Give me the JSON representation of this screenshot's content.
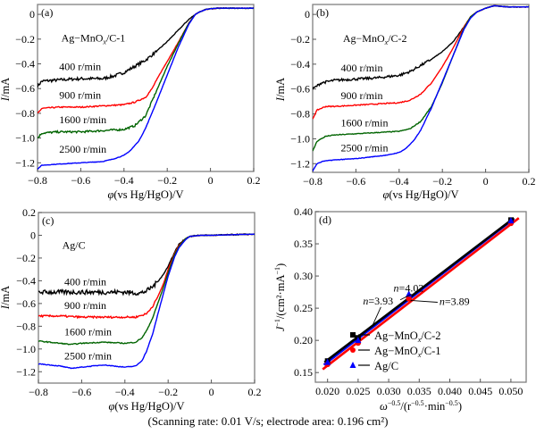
{
  "caption": "(Scanning rate: 0.01 V/s; electrode area: 0.196 cm²)",
  "colors": {
    "400": "#000000",
    "900": "#ff0000",
    "1600": "#006400",
    "2500": "#0000ff",
    "agmnox2": "#000000",
    "agmnox1": "#ff0000",
    "agc": "#0000ff",
    "axis": "#808080"
  },
  "chart_data": [
    {
      "type": "line",
      "panel": "(a)",
      "title": "Ag−MnOx/C-1",
      "xlabel": "φ(vs Hg/HgO)/V",
      "ylabel": "I/mA",
      "xlim": [
        -0.8,
        0.2
      ],
      "ylim": [
        -1.27,
        0.08
      ],
      "xticks": [
        -0.8,
        -0.6,
        -0.4,
        -0.2,
        0,
        0.2
      ],
      "xtick_labels": [
        "−0.8",
        "−0.6",
        "−0.4",
        "−0.2",
        "0",
        "0.2"
      ],
      "yticks": [
        0,
        -0.2,
        -0.4,
        -0.6,
        -0.8,
        -1.0,
        -1.2
      ],
      "ytick_labels": [
        "0",
        "−0.2",
        "−0.4",
        "−0.6",
        "−0.8",
        "−1.0",
        "−1.2"
      ],
      "series": [
        {
          "name": "400 r/min",
          "color_key": "400",
          "noise": 0.012,
          "x": [
            -0.8,
            -0.78,
            -0.7,
            -0.6,
            -0.5,
            -0.45,
            -0.4,
            -0.35,
            -0.3,
            -0.25,
            -0.2,
            -0.15,
            -0.1,
            -0.07,
            -0.05,
            -0.02,
            0.0,
            0.03,
            0.1,
            0.2
          ],
          "y": [
            -0.58,
            -0.54,
            -0.53,
            -0.52,
            -0.52,
            -0.5,
            -0.47,
            -0.42,
            -0.37,
            -0.3,
            -0.22,
            -0.13,
            -0.04,
            0.0,
            0.02,
            0.04,
            0.045,
            0.05,
            0.05,
            0.05
          ]
        },
        {
          "name": "900 r/min",
          "color_key": "900",
          "noise": 0.005,
          "x": [
            -0.8,
            -0.78,
            -0.7,
            -0.6,
            -0.5,
            -0.4,
            -0.35,
            -0.3,
            -0.27,
            -0.24,
            -0.2,
            -0.15,
            -0.1,
            -0.07,
            -0.05,
            -0.02,
            0.0,
            0.03,
            0.1,
            0.2
          ],
          "y": [
            -0.8,
            -0.76,
            -0.75,
            -0.75,
            -0.74,
            -0.73,
            -0.71,
            -0.67,
            -0.6,
            -0.5,
            -0.38,
            -0.23,
            -0.07,
            0.0,
            0.02,
            0.04,
            0.045,
            0.05,
            0.05,
            0.05
          ]
        },
        {
          "name": "1600 r/min",
          "color_key": "1600",
          "noise": 0.008,
          "x": [
            -0.8,
            -0.78,
            -0.7,
            -0.6,
            -0.5,
            -0.4,
            -0.35,
            -0.3,
            -0.25,
            -0.2,
            -0.15,
            -0.1,
            -0.07,
            -0.05,
            -0.02,
            0.0,
            0.03,
            0.1,
            0.2
          ],
          "y": [
            -1.0,
            -0.96,
            -0.95,
            -0.95,
            -0.94,
            -0.93,
            -0.9,
            -0.82,
            -0.62,
            -0.42,
            -0.24,
            -0.07,
            0.0,
            0.02,
            0.04,
            0.045,
            0.05,
            0.05,
            0.05
          ]
        },
        {
          "name": "2500 r/min",
          "color_key": "2500",
          "noise": 0.002,
          "x": [
            -0.8,
            -0.78,
            -0.7,
            -0.6,
            -0.5,
            -0.45,
            -0.4,
            -0.37,
            -0.33,
            -0.3,
            -0.25,
            -0.2,
            -0.15,
            -0.1,
            -0.07,
            -0.05,
            -0.02,
            0.0,
            0.03,
            0.1,
            0.2
          ],
          "y": [
            -1.25,
            -1.22,
            -1.21,
            -1.2,
            -1.19,
            -1.17,
            -1.14,
            -1.1,
            -1.02,
            -0.92,
            -0.71,
            -0.49,
            -0.27,
            -0.08,
            0.0,
            0.02,
            0.04,
            0.045,
            0.05,
            0.05,
            0.05
          ]
        }
      ],
      "labels": [
        {
          "text": "400 r/min",
          "x": -0.7,
          "y": -0.45
        },
        {
          "text": "900 r/min",
          "x": -0.7,
          "y": -0.68
        },
        {
          "text": "1600 r/min",
          "x": -0.7,
          "y": -0.88
        },
        {
          "text": "2500 r/min",
          "x": -0.7,
          "y": -1.12
        }
      ],
      "title_pos": {
        "x": -0.69,
        "y": -0.22
      }
    },
    {
      "type": "line",
      "panel": "(b)",
      "title": "Ag−MnOx/C-2",
      "xlabel": "φ(vs Hg/HgO)/V",
      "ylabel": "I/mA",
      "xlim": [
        -0.8,
        0.2
      ],
      "ylim": [
        -1.27,
        0.08
      ],
      "xticks": [
        -0.8,
        -0.6,
        -0.4,
        -0.2,
        0,
        0.2
      ],
      "xtick_labels": [
        "−0.8",
        "−0.6",
        "−0.4",
        "−0.2",
        "0",
        "0.2"
      ],
      "yticks": [
        0,
        -0.2,
        -0.4,
        -0.6,
        -0.8,
        -1.0,
        -1.2
      ],
      "ytick_labels": [
        "0",
        "−0.2",
        "−0.4",
        "−0.6",
        "−0.8",
        "−1.0",
        "−1.2"
      ],
      "series": [
        {
          "name": "400 r/min",
          "color_key": "400",
          "noise": 0.01,
          "x": [
            -0.8,
            -0.76,
            -0.7,
            -0.6,
            -0.5,
            -0.4,
            -0.35,
            -0.3,
            -0.25,
            -0.2,
            -0.15,
            -0.1,
            -0.07,
            -0.04,
            0.0,
            0.04,
            0.1,
            0.2
          ],
          "y": [
            -0.6,
            -0.55,
            -0.53,
            -0.52,
            -0.51,
            -0.49,
            -0.46,
            -0.41,
            -0.36,
            -0.3,
            -0.22,
            -0.1,
            -0.02,
            0.02,
            0.05,
            0.07,
            0.06,
            0.06
          ]
        },
        {
          "name": "900 r/min",
          "color_key": "900",
          "noise": 0.004,
          "x": [
            -0.8,
            -0.78,
            -0.74,
            -0.7,
            -0.6,
            -0.5,
            -0.4,
            -0.35,
            -0.3,
            -0.25,
            -0.2,
            -0.15,
            -0.1,
            -0.07,
            -0.04,
            0.0,
            0.04,
            0.1,
            0.2
          ],
          "y": [
            -0.84,
            -0.77,
            -0.74,
            -0.74,
            -0.73,
            -0.72,
            -0.71,
            -0.69,
            -0.64,
            -0.55,
            -0.42,
            -0.27,
            -0.1,
            -0.02,
            0.02,
            0.05,
            0.07,
            0.06,
            0.06
          ]
        },
        {
          "name": "1600 r/min",
          "color_key": "1600",
          "noise": 0.003,
          "x": [
            -0.8,
            -0.78,
            -0.74,
            -0.7,
            -0.6,
            -0.5,
            -0.4,
            -0.35,
            -0.3,
            -0.25,
            -0.2,
            -0.15,
            -0.1,
            -0.07,
            -0.04,
            0.0,
            0.04,
            0.1,
            0.2
          ],
          "y": [
            -1.1,
            -1.02,
            -0.98,
            -0.97,
            -0.96,
            -0.95,
            -0.94,
            -0.92,
            -0.86,
            -0.74,
            -0.55,
            -0.33,
            -0.11,
            -0.02,
            0.02,
            0.05,
            0.07,
            0.06,
            0.06
          ]
        },
        {
          "name": "2500 r/min",
          "color_key": "2500",
          "noise": 0.002,
          "x": [
            -0.8,
            -0.78,
            -0.75,
            -0.7,
            -0.6,
            -0.5,
            -0.45,
            -0.4,
            -0.37,
            -0.33,
            -0.3,
            -0.25,
            -0.2,
            -0.15,
            -0.1,
            -0.07,
            -0.04,
            0.0,
            0.04,
            0.1,
            0.2
          ],
          "y": [
            -1.26,
            -1.2,
            -1.18,
            -1.17,
            -1.16,
            -1.14,
            -1.13,
            -1.11,
            -1.08,
            -1.01,
            -0.93,
            -0.75,
            -0.54,
            -0.33,
            -0.12,
            -0.03,
            0.02,
            0.05,
            0.07,
            0.06,
            0.06
          ]
        }
      ],
      "labels": [
        {
          "text": "400 r/min",
          "x": -0.67,
          "y": -0.46
        },
        {
          "text": "900 r/min",
          "x": -0.67,
          "y": -0.68
        },
        {
          "text": "1600 r/min",
          "x": -0.67,
          "y": -0.9
        },
        {
          "text": "2500 r/min",
          "x": -0.67,
          "y": -1.1
        }
      ],
      "title_pos": {
        "x": -0.66,
        "y": -0.22
      }
    },
    {
      "type": "line",
      "panel": "(c)",
      "title": "Ag/C",
      "xlabel": "φ(vs Hg/HgO)/V",
      "ylabel": "I/mA",
      "xlim": [
        -0.8,
        0.2
      ],
      "ylim": [
        -1.3,
        0.2
      ],
      "xticks": [
        -0.8,
        -0.6,
        -0.4,
        -0.2,
        0,
        0.2
      ],
      "xtick_labels": [
        "−0.8",
        "−0.6",
        "−0.4",
        "−0.2",
        "0",
        "0.2"
      ],
      "yticks": [
        0.2,
        0,
        -0.2,
        -0.4,
        -0.6,
        -0.8,
        -1.0,
        -1.2
      ],
      "ytick_labels": [
        "0.2",
        "0",
        "−0.2",
        "−0.4",
        "−0.6",
        "−0.8",
        "−1.0",
        "−1.2"
      ],
      "series": [
        {
          "name": "400 r/min",
          "color_key": "400",
          "noise": 0.02,
          "x": [
            -0.8,
            -0.7,
            -0.6,
            -0.5,
            -0.4,
            -0.33,
            -0.3,
            -0.27,
            -0.25,
            -0.22,
            -0.2,
            -0.17,
            -0.15,
            -0.12,
            -0.1,
            -0.05,
            0.0,
            0.1,
            0.2
          ],
          "y": [
            -0.5,
            -0.5,
            -0.5,
            -0.5,
            -0.5,
            -0.51,
            -0.49,
            -0.45,
            -0.41,
            -0.34,
            -0.27,
            -0.15,
            -0.08,
            -0.03,
            -0.01,
            0.0,
            0.0,
            0.005,
            0.01
          ]
        },
        {
          "name": "900 r/min",
          "color_key": "900",
          "noise": 0.008,
          "x": [
            -0.8,
            -0.7,
            -0.6,
            -0.5,
            -0.4,
            -0.35,
            -0.3,
            -0.27,
            -0.25,
            -0.22,
            -0.2,
            -0.17,
            -0.15,
            -0.12,
            -0.1,
            -0.05,
            0.0,
            0.1,
            0.2
          ],
          "y": [
            -0.71,
            -0.71,
            -0.72,
            -0.72,
            -0.72,
            -0.72,
            -0.69,
            -0.62,
            -0.55,
            -0.42,
            -0.3,
            -0.16,
            -0.09,
            -0.03,
            -0.01,
            0.0,
            0.0,
            0.005,
            0.01
          ]
        },
        {
          "name": "1600 r/min",
          "color_key": "1600",
          "noise": 0.004,
          "x": [
            -0.8,
            -0.7,
            -0.65,
            -0.6,
            -0.5,
            -0.4,
            -0.35,
            -0.32,
            -0.3,
            -0.27,
            -0.25,
            -0.22,
            -0.2,
            -0.17,
            -0.15,
            -0.12,
            -0.1,
            -0.05,
            0.0,
            0.1,
            0.2
          ],
          "y": [
            -0.93,
            -0.95,
            -0.96,
            -0.95,
            -0.94,
            -0.95,
            -0.94,
            -0.9,
            -0.84,
            -0.72,
            -0.61,
            -0.45,
            -0.33,
            -0.17,
            -0.1,
            -0.03,
            -0.01,
            0.0,
            0.0,
            0.005,
            0.01
          ]
        },
        {
          "name": "2500 r/min",
          "color_key": "2500",
          "noise": 0.003,
          "x": [
            -0.8,
            -0.7,
            -0.65,
            -0.6,
            -0.5,
            -0.45,
            -0.4,
            -0.35,
            -0.32,
            -0.3,
            -0.27,
            -0.25,
            -0.22,
            -0.2,
            -0.17,
            -0.15,
            -0.12,
            -0.1,
            -0.05,
            0.0,
            0.1,
            0.2
          ],
          "y": [
            -1.13,
            -1.15,
            -1.17,
            -1.16,
            -1.14,
            -1.15,
            -1.16,
            -1.15,
            -1.1,
            -1.02,
            -0.86,
            -0.71,
            -0.5,
            -0.36,
            -0.19,
            -0.11,
            -0.04,
            -0.01,
            0.0,
            0.0,
            0.005,
            0.01
          ]
        }
      ],
      "labels": [
        {
          "text": "400 r/min",
          "x": -0.68,
          "y": -0.44
        },
        {
          "text": "900 r/min",
          "x": -0.68,
          "y": -0.65
        },
        {
          "text": "1600 r/min",
          "x": -0.68,
          "y": -0.88
        },
        {
          "text": "2500 r/min",
          "x": -0.68,
          "y": -1.09
        }
      ],
      "title_pos": {
        "x": -0.69,
        "y": -0.12
      }
    },
    {
      "type": "scatter",
      "panel": "(d)",
      "xlabel": "ω^−0.5/(r^−0.5·min^−0.5)",
      "ylabel": "J^−1/(cm²·mA^−1)",
      "xlim": [
        0.018,
        0.0525
      ],
      "ylim": [
        0.135,
        0.4
      ],
      "xticks": [
        0.02,
        0.025,
        0.03,
        0.035,
        0.04,
        0.045,
        0.05
      ],
      "xtick_labels": [
        "0.020",
        "0.025",
        "0.030",
        "0.035",
        "0.040",
        "0.045",
        "0.050"
      ],
      "yticks": [
        0.15,
        0.2,
        0.25,
        0.3,
        0.35,
        0.4
      ],
      "ytick_labels": [
        "0.15",
        "0.20",
        "0.25",
        "0.30",
        "0.35",
        "0.40"
      ],
      "series": [
        {
          "name": "Ag−MnOx/C-2",
          "color_key": "agmnox2",
          "marker": "square",
          "x": [
            0.02,
            0.025,
            0.0333,
            0.05
          ],
          "y": [
            0.168,
            0.204,
            0.265,
            0.387
          ],
          "fit": {
            "x": [
              0.0195,
              0.0505
            ],
            "y": [
              0.166,
              0.39
            ]
          }
        },
        {
          "name": "Ag−MnOx/C-1",
          "color_key": "agmnox1",
          "marker": "circle",
          "x": [
            0.02,
            0.025,
            0.0333,
            0.05
          ],
          "y": [
            0.163,
            0.196,
            0.265,
            0.382
          ],
          "fit": {
            "x": [
              0.0192,
              0.0513
            ],
            "y": [
              0.155,
              0.39
            ]
          }
        },
        {
          "name": "Ag/C",
          "color_key": "agc",
          "marker": "triangle",
          "x": [
            0.02,
            0.025,
            0.0333,
            0.05
          ],
          "y": [
            0.166,
            0.2,
            0.272,
            0.386
          ],
          "fit": {
            "x": [
              0.0194,
              0.0505
            ],
            "y": [
              0.162,
              0.389
            ]
          }
        }
      ],
      "annotations": [
        {
          "text": "n=4.02",
          "n": "n",
          "value": "=4.02",
          "tx": 0.0308,
          "ty": 0.276,
          "ax": 0.0319,
          "ay": 0.263
        },
        {
          "text": "n=3.93",
          "n": "n",
          "value": "=3.93",
          "tx": 0.0258,
          "ty": 0.256,
          "ax": 0.0273,
          "ay": 0.222
        },
        {
          "text": "n=3.89",
          "n": "n",
          "value": "=3.89",
          "tx": 0.0383,
          "ty": 0.255,
          "ax": 0.0336,
          "ay": 0.262
        }
      ],
      "legend": {
        "placement": "lower-right",
        "entries": [
          "Ag−MnOx/C-2",
          "Ag−MnOx/C-1",
          "Ag/C"
        ]
      }
    }
  ]
}
